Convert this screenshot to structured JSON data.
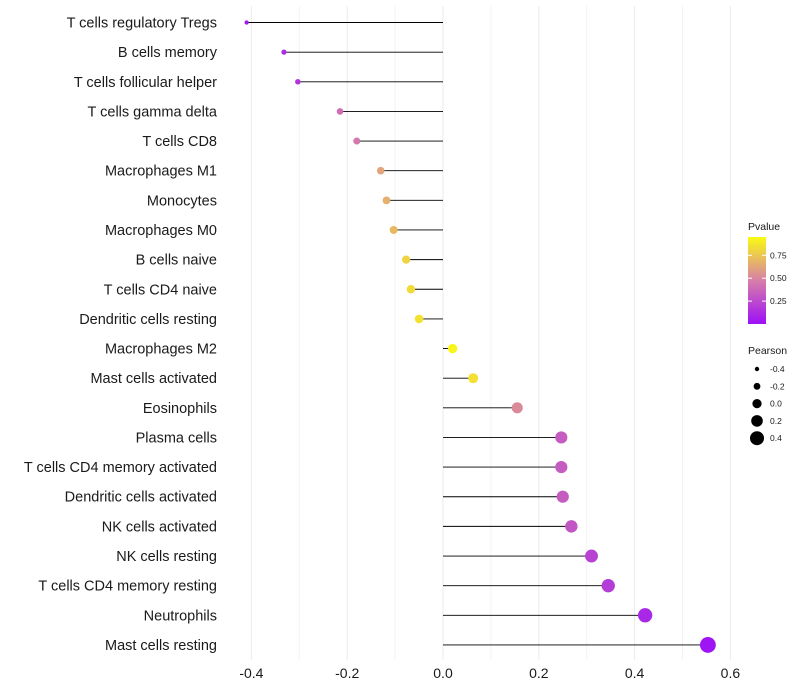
{
  "chart_data": {
    "type": "lollipop",
    "title": "",
    "xlabel": "",
    "ylabel": "",
    "xlim": [
      -0.42,
      0.6
    ],
    "x_ticks": [
      -0.4,
      -0.2,
      0.0,
      0.2,
      0.4,
      0.6
    ],
    "x_tick_labels": [
      "-0.4",
      "-0.2",
      "0.0",
      "0.2",
      "0.4",
      "0.6"
    ],
    "grid": true,
    "baseline": 0.0,
    "categories": [
      "T cells regulatory  Tregs",
      "B cells memory",
      "T cells follicular helper",
      "T cells gamma delta",
      "T cells CD8",
      "Macrophages M1",
      "Monocytes",
      "Macrophages M0",
      "B cells naive",
      "T cells CD4 naive",
      "Dendritic cells resting",
      "Macrophages M2",
      "Mast cells activated",
      "Eosinophils",
      "Plasma cells",
      "T cells CD4 memory activated",
      "Dendritic cells activated",
      "NK cells activated",
      "NK cells resting",
      "T cells CD4 memory resting",
      "Neutrophils",
      "Mast cells resting"
    ],
    "pearson": [
      -0.41,
      -0.332,
      -0.303,
      -0.215,
      -0.18,
      -0.13,
      -0.118,
      -0.103,
      -0.077,
      -0.067,
      -0.05,
      0.02,
      0.063,
      0.155,
      0.247,
      0.247,
      0.25,
      0.268,
      0.31,
      0.345,
      0.422,
      0.553
    ],
    "pvalue": [
      0.04,
      0.12,
      0.16,
      0.4,
      0.45,
      0.62,
      0.66,
      0.7,
      0.8,
      0.83,
      0.86,
      0.93,
      0.85,
      0.52,
      0.33,
      0.33,
      0.33,
      0.3,
      0.22,
      0.19,
      0.1,
      0.02
    ],
    "legend": {
      "color_title": "Pvalue",
      "color_ticks": [
        0.25,
        0.5,
        0.75
      ],
      "color_tick_labels": [
        "0.25",
        "0.50",
        "0.75"
      ],
      "color_range": [
        0.0,
        0.95
      ],
      "color_low": "#9d0ff7",
      "color_mid": "#d77fa8",
      "color_high": "#fafa13",
      "size_title": "Pearson",
      "size_values": [
        -0.4,
        -0.2,
        0.0,
        0.2,
        0.4
      ],
      "size_labels": [
        "-0.4",
        "-0.2",
        "0.0",
        "0.2",
        "0.4"
      ],
      "placement": "right"
    }
  }
}
